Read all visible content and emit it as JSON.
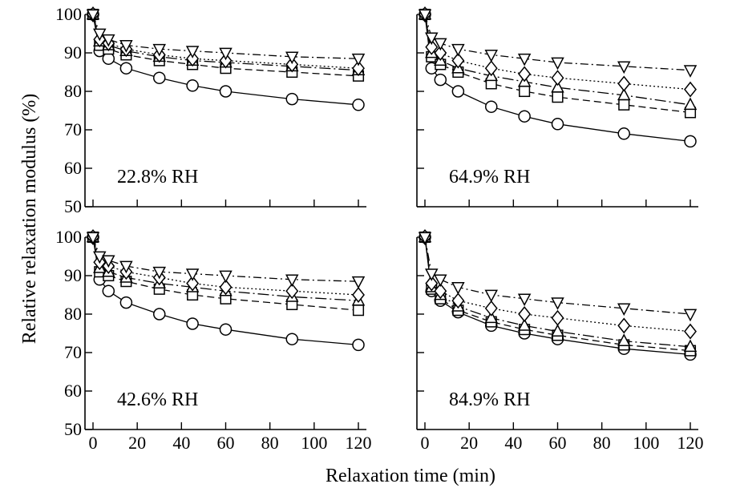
{
  "chart_data": {
    "type": "line",
    "xlabel": "Relaxation time (min)",
    "ylabel": "Relative relaxation modulus (%)",
    "xlim": [
      0,
      120
    ],
    "ylim": [
      50,
      100
    ],
    "x_ticks": [
      0,
      20,
      40,
      60,
      80,
      100,
      120
    ],
    "y_ticks": [
      50,
      60,
      70,
      80,
      90,
      100
    ],
    "grid": false,
    "legend": "none",
    "x": [
      0,
      3,
      7,
      15,
      30,
      45,
      60,
      90,
      120
    ],
    "series_styles": [
      {
        "marker": "circle",
        "dash": "solid"
      },
      {
        "marker": "square",
        "dash": "dashed"
      },
      {
        "marker": "triangle-up",
        "dash": "long-dash-dot"
      },
      {
        "marker": "diamond",
        "dash": "dotted"
      },
      {
        "marker": "triangle-down",
        "dash": "dash-dot"
      }
    ],
    "panels": [
      {
        "label": "22.8% RH",
        "series": [
          {
            "values": [
              100,
              90.5,
              88.5,
              86,
              83.5,
              81.5,
              80,
              78,
              76.5
            ]
          },
          {
            "values": [
              100,
              92,
              91,
              89.5,
              88,
              87,
              86,
              85,
              84
            ]
          },
          {
            "values": [
              100,
              93,
              92,
              90.5,
              89,
              88,
              87.5,
              86.5,
              85.5
            ]
          },
          {
            "values": [
              100,
              93.5,
              92.5,
              91,
              89.5,
              88.5,
              88,
              87,
              86
            ]
          },
          {
            "values": [
              100,
              95,
              93.5,
              92,
              91,
              90.5,
              90,
              89,
              88.5
            ]
          }
        ]
      },
      {
        "label": "64.9% RH",
        "series": [
          {
            "values": [
              100,
              86,
              83,
              80,
              76,
              73.5,
              71.5,
              69,
              67
            ]
          },
          {
            "values": [
              100,
              89,
              87,
              85,
              82,
              80,
              78.5,
              76.5,
              74.5
            ]
          },
          {
            "values": [
              100,
              90,
              88,
              86,
              84,
              82.5,
              81,
              79,
              76.5
            ]
          },
          {
            "values": [
              100,
              91.5,
              90,
              88,
              86,
              84.5,
              83.5,
              82,
              80.5
            ]
          },
          {
            "values": [
              100,
              94,
              92.5,
              91,
              89.5,
              88.5,
              87.5,
              86.5,
              85.5
            ]
          }
        ]
      },
      {
        "label": "42.6% RH",
        "series": [
          {
            "values": [
              100,
              89,
              86,
              83,
              80,
              77.5,
              76,
              73.5,
              72
            ]
          },
          {
            "values": [
              100,
              91,
              90,
              88.5,
              86.5,
              85,
              84,
              82.5,
              81
            ]
          },
          {
            "values": [
              100,
              92,
              91,
              89.5,
              88,
              87,
              86,
              84.5,
              83.5
            ]
          },
          {
            "values": [
              100,
              93.5,
              92.5,
              91,
              89.5,
              88,
              87,
              86,
              85
            ]
          },
          {
            "values": [
              100,
              95,
              94,
              92.5,
              91,
              90.5,
              90,
              89,
              88.5
            ]
          }
        ]
      },
      {
        "label": "84.9% RH",
        "series": [
          {
            "values": [
              100,
              86,
              83.5,
              80.5,
              77,
              75,
              73.5,
              71,
              69.5
            ]
          },
          {
            "values": [
              100,
              86.5,
              84,
              81,
              78,
              76,
              74.5,
              72,
              70.5
            ]
          },
          {
            "values": [
              100,
              87,
              85,
              82,
              79,
              77,
              75.5,
              73,
              71.5
            ]
          },
          {
            "values": [
              100,
              88,
              86,
              83.5,
              81.5,
              80,
              79,
              77,
              75.5
            ]
          },
          {
            "values": [
              100,
              90.5,
              89,
              87,
              85,
              84,
              83,
              81.5,
              80
            ]
          }
        ]
      }
    ]
  }
}
